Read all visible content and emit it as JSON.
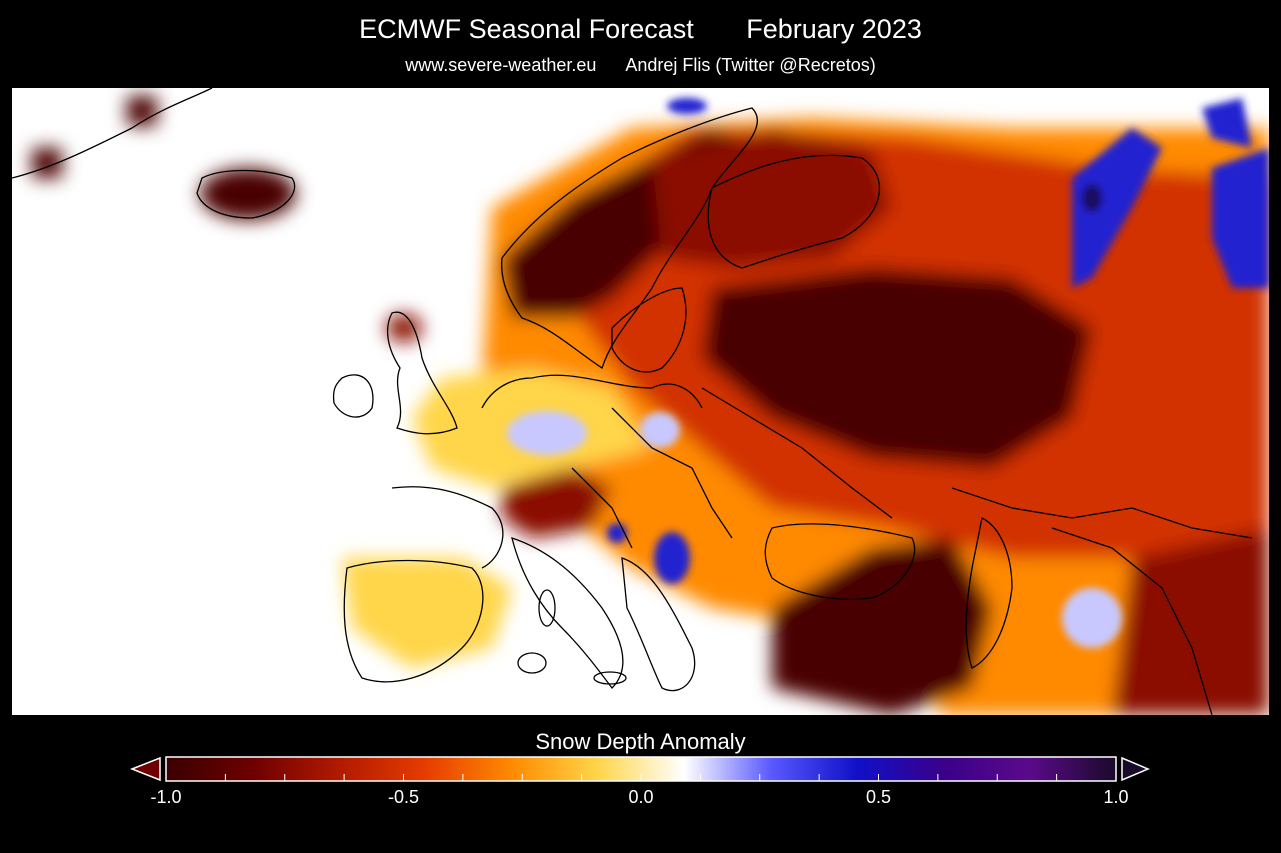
{
  "header": {
    "title_left": "ECMWF Seasonal Forecast",
    "title_right": "February 2023",
    "source_site": "www.severe-weather.eu",
    "author": "Andrej Flis (Twitter @Recretos)"
  },
  "legend": {
    "title": "Snow Depth Anomaly",
    "tick_labels": [
      "-1.0",
      "-0.5",
      "0.0",
      "0.5",
      "1.0"
    ],
    "min": -1.0,
    "max": 1.0,
    "colors": [
      "#3a0000",
      "#6e0000",
      "#b01a00",
      "#e63c00",
      "#ff8a00",
      "#ffd54a",
      "#ffffff",
      "#5a5aff",
      "#1010c8",
      "#3a008a",
      "#5a0a8a",
      "#1a0a2a"
    ]
  },
  "map": {
    "colors": {
      "ocean": "#ffffff",
      "deep_loss": "#4a0000",
      "strong_loss": "#8a0a00",
      "moderate_loss": "#d23200",
      "mild_loss": "#ff8a00",
      "slight_loss": "#ffd54a",
      "slight_gain": "#c8c8ff",
      "moderate_gain": "#2020d0",
      "strong_gain": "#1a0a5a",
      "coastline": "#000000"
    }
  }
}
